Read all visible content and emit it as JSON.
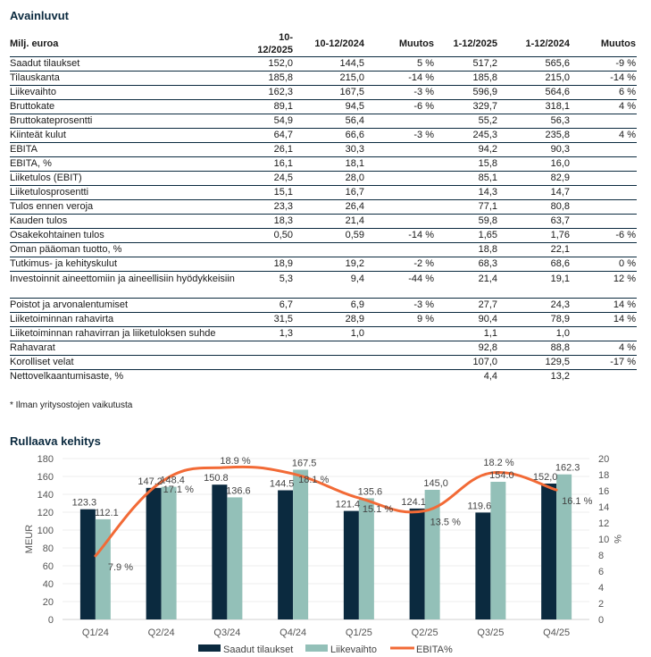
{
  "section1_title": "Avainluvut",
  "table": {
    "headers": [
      "Milj. euroa",
      "10-12/2025",
      "10-12/2024",
      "Muutos",
      "1-12/2025",
      "1-12/2024",
      "Muutos"
    ],
    "rows": [
      [
        "Saadut tilaukset",
        "152,0",
        "144,5",
        "5 %",
        "517,2",
        "565,6",
        "-9 %"
      ],
      [
        "Tilauskanta",
        "185,8",
        "215,0",
        "-14 %",
        "185,8",
        "215,0",
        "-14 %"
      ],
      [
        "Liikevaihto",
        "162,3",
        "167,5",
        "-3 %",
        "596,9",
        "564,6",
        "6 %"
      ],
      [
        "Bruttokate",
        "89,1",
        "94,5",
        "-6 %",
        "329,7",
        "318,1",
        "4 %"
      ],
      [
        "Bruttokateprosentti",
        "54,9",
        "56,4",
        "",
        "55,2",
        "56,3",
        ""
      ],
      [
        "Kiinteät kulut",
        "64,7",
        "66,6",
        "-3 %",
        "245,3",
        "235,8",
        "4 %"
      ],
      [
        "EBITA",
        "26,1",
        "30,3",
        "",
        "94,2",
        "90,3",
        ""
      ],
      [
        "EBITA, %",
        "16,1",
        "18,1",
        "",
        "15,8",
        "16,0",
        ""
      ],
      [
        "Liiketulos (EBIT)",
        "24,5",
        "28,0",
        "",
        "85,1",
        "82,9",
        ""
      ],
      [
        "Liiketulosprosentti",
        "15,1",
        "16,7",
        "",
        "14,3",
        "14,7",
        ""
      ],
      [
        "Tulos ennen veroja",
        "23,3",
        "26,4",
        "",
        "77,1",
        "80,8",
        ""
      ],
      [
        "Kauden tulos",
        "18,3",
        "21,4",
        "",
        "59,8",
        "63,7",
        ""
      ],
      [
        "Osakekohtainen tulos",
        "0,50",
        "0,59",
        "-14 %",
        "1,65",
        "1,76",
        "-6 %"
      ],
      [
        "Oman pääoman tuotto, %",
        "",
        "",
        "",
        "18,8",
        "22,1",
        ""
      ],
      [
        "Tutkimus- ja kehityskulut",
        "18,9",
        "19,2",
        "-2 %",
        "68,3",
        "68,6",
        "0 %"
      ],
      [
        "Investoinnit aineettomiin ja aineellisiin hyödykkeisiin",
        "5,3",
        "9,4",
        "-44 %",
        "21,4",
        "19,1",
        "12 %"
      ],
      [
        "Poistot ja arvonalentumiset",
        "6,7",
        "6,9",
        "-3 %",
        "27,7",
        "24,3",
        "14 %"
      ],
      [
        "Liiketoiminnan rahavirta",
        "31,5",
        "28,9",
        "9 %",
        "90,4",
        "78,9",
        "14 %"
      ],
      [
        "Liiketoiminnan rahavirran ja liiketuloksen suhde",
        "1,3",
        "1,0",
        "",
        "1,1",
        "1,0",
        ""
      ],
      [
        "Rahavarat",
        "",
        "",
        "",
        "92,8",
        "88,8",
        "4 %"
      ],
      [
        "Korolliset velat",
        "",
        "",
        "",
        "107,0",
        "129,5",
        "-17 %"
      ],
      [
        "Nettovelkaantumisaste, %",
        "",
        "",
        "",
        "4,4",
        "13,2",
        ""
      ]
    ]
  },
  "footnote": "* Ilman yritysostojen vaikutusta",
  "section2_title": "Rullaava kehitys",
  "colors": {
    "orders": "#0b2a3f",
    "revenue": "#93c0b8",
    "ebita": "#f26a36",
    "rule": "#0b2a3f"
  },
  "chart_data": {
    "type": "bar",
    "title": "Rullaava kehitys",
    "categories": [
      "Q1/24",
      "Q2/24",
      "Q3/24",
      "Q4/24",
      "Q1/25",
      "Q2/25",
      "Q3/25",
      "Q4/25"
    ],
    "series": [
      {
        "name": "Saadut tilaukset",
        "type": "bar",
        "axis": "left",
        "values": [
          123.3,
          147.2,
          150.8,
          144.5,
          121.4,
          124.1,
          119.6,
          152.0
        ],
        "labels": [
          "123.3",
          "147.2",
          "150.8",
          "144.5",
          "121.4",
          "124.1",
          "119.6",
          "152,0"
        ]
      },
      {
        "name": "Liikevaihto",
        "type": "bar",
        "axis": "left",
        "values": [
          112.1,
          148.4,
          136.6,
          167.5,
          135.6,
          145.0,
          154.0,
          162.3
        ],
        "labels": [
          "112.1",
          "148.4",
          "136.6",
          "167.5",
          "135.6",
          "145,0",
          "154.0",
          "162.3"
        ]
      },
      {
        "name": "EBITA%",
        "type": "line",
        "axis": "right",
        "values": [
          7.9,
          17.1,
          18.9,
          18.1,
          15.1,
          13.5,
          18.2,
          16.1
        ],
        "labels": [
          "7.9 %",
          "17.1 %",
          "18.9 %",
          "18.1 %",
          "15.1 %",
          "13.5 %",
          "18.2 %",
          "16.1 %"
        ]
      }
    ],
    "ylabel": "MEUR",
    "ylim": [
      0,
      180
    ],
    "yticks": [
      0,
      20,
      40,
      60,
      80,
      100,
      120,
      140,
      160,
      180
    ],
    "y2label": "%",
    "y2lim": [
      0,
      20
    ],
    "y2ticks": [
      0,
      2,
      4,
      6,
      8,
      10,
      12,
      14,
      16,
      18,
      20
    ],
    "grid": true,
    "legend": "bottom-center"
  }
}
